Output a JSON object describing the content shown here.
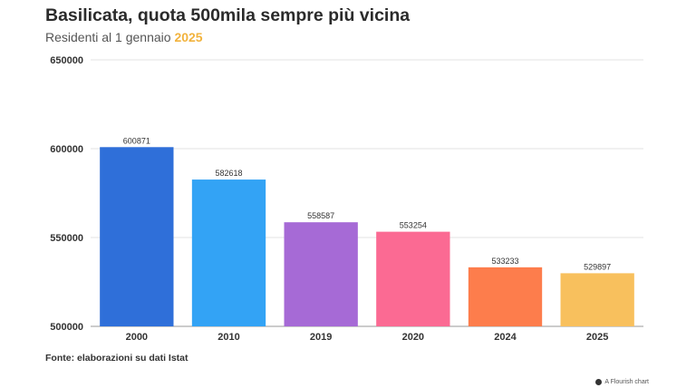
{
  "header": {
    "title": "Basilicata, quota 500mila sempre più vicina",
    "subtitle_text": "Residenti al 1 gennaio ",
    "subtitle_year": "2025"
  },
  "footer": {
    "source": "Fonte: elaborazioni su dati Istat",
    "credit": "A Flourish chart",
    "credit_icon": "flourish-logo-icon"
  },
  "chart_data": {
    "type": "bar",
    "title": "Basilicata, quota 500mila sempre più vicina",
    "subtitle": "Residenti al 1 gennaio 2025",
    "categories": [
      "2000",
      "2010",
      "2019",
      "2020",
      "2024",
      "2025"
    ],
    "values": [
      600871,
      582618,
      558587,
      553254,
      533233,
      529897
    ],
    "colors": [
      "#2f6fd9",
      "#33a3f5",
      "#a66ad6",
      "#fb6a93",
      "#fd7d4c",
      "#f8c05d"
    ],
    "ylim": [
      500000,
      650000
    ],
    "yticks": [
      500000,
      550000,
      600000,
      650000
    ],
    "xlabel": "",
    "ylabel": "",
    "grid": true,
    "legend": "none"
  }
}
